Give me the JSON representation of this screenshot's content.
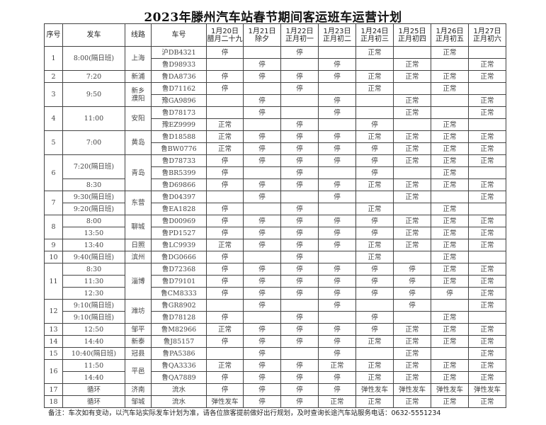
{
  "title": "2023年滕州汽车站春节期间客运班车运营计划",
  "headers": {
    "no": "序号",
    "time": "发车",
    "route": "线路",
    "plate": "车号"
  },
  "days": [
    {
      "date": "1月20日",
      "lunar": "腊月二十九"
    },
    {
      "date": "1月21日",
      "lunar": "除夕"
    },
    {
      "date": "1月22日",
      "lunar": "正月初一"
    },
    {
      "date": "1月23日",
      "lunar": "正月初二"
    },
    {
      "date": "1月24日",
      "lunar": "正月初三"
    },
    {
      "date": "1月25日",
      "lunar": "正月初四"
    },
    {
      "date": "1月26日",
      "lunar": "正月初五"
    },
    {
      "date": "1月27日",
      "lunar": "正月初六"
    }
  ],
  "groups": [
    {
      "no": "1",
      "route": "上海",
      "rows": [
        {
          "time": "8:00(隔日班)",
          "plate": "沪DB4321",
          "status": [
            "停",
            "",
            "停",
            "",
            "正常",
            "",
            "正常",
            ""
          ]
        },
        {
          "time": null,
          "plate": "鲁D98933",
          "status": [
            "",
            "停",
            "",
            "停",
            "",
            "正常",
            "",
            "正常"
          ]
        }
      ]
    },
    {
      "no": "2",
      "route": "新浦",
      "rows": [
        {
          "time": "7:20",
          "plate": "鲁DA8736",
          "status": [
            "停",
            "停",
            "停",
            "停",
            "正常",
            "正常",
            "正常",
            "正常"
          ]
        }
      ]
    },
    {
      "no": "3",
      "route": "新乡濮阳",
      "rows": [
        {
          "time": "9:50",
          "plate": "鲁D71162",
          "status": [
            "停",
            "",
            "停",
            "",
            "正常",
            "",
            "正常",
            ""
          ]
        },
        {
          "time": null,
          "plate": "豫GA9896",
          "status": [
            "",
            "停",
            "",
            "停",
            "",
            "正常",
            "",
            "正常"
          ]
        }
      ]
    },
    {
      "no": "4",
      "route": "安阳",
      "rows": [
        {
          "time": "11:00",
          "plate": "鲁D78173",
          "status": [
            "",
            "停",
            "",
            "停",
            "",
            "正常",
            "",
            "正常"
          ]
        },
        {
          "time": null,
          "plate": "豫EZ9999",
          "status": [
            "正常",
            "",
            "停",
            "",
            "停",
            "",
            "正常",
            ""
          ]
        }
      ]
    },
    {
      "no": "5",
      "route": "黄岛",
      "rows": [
        {
          "time": "7:00",
          "plate": "鲁D18588",
          "status": [
            "正常",
            "停",
            "停",
            "停",
            "正常",
            "正常",
            "正常",
            "正常"
          ]
        },
        {
          "time": null,
          "plate": "鲁BW0776",
          "status": [
            "正常",
            "停",
            "停",
            "停",
            "停",
            "正常",
            "正常",
            "正常"
          ]
        }
      ]
    },
    {
      "no": "6",
      "route": "青岛",
      "rows": [
        {
          "time": "7:20(隔日班)",
          "plate": "鲁D78733",
          "status": [
            "停",
            "停",
            "停",
            "停",
            "停",
            "正常",
            "正常",
            "正常"
          ]
        },
        {
          "time": null,
          "plate": "鲁BR5399",
          "status": [
            "停",
            "",
            "停",
            "",
            "停",
            "",
            "正常",
            ""
          ]
        },
        {
          "time": "8:30",
          "plate": "鲁D69866",
          "status": [
            "停",
            "停",
            "停",
            "停",
            "正常",
            "正常",
            "正常",
            "正常"
          ]
        }
      ]
    },
    {
      "no": "7",
      "route": "东营",
      "rows": [
        {
          "time": "9:30(隔日班)",
          "plate": "鲁D04397",
          "status": [
            "",
            "停",
            "",
            "停",
            "",
            "正常",
            "",
            "正常"
          ]
        },
        {
          "time": "9:20(隔日班)",
          "plate": "鲁EA1828",
          "status": [
            "停",
            "",
            "停",
            "",
            "正常",
            "",
            "正常",
            ""
          ]
        }
      ]
    },
    {
      "no": "8",
      "route": "聊城",
      "rows": [
        {
          "time": "8:00",
          "plate": "鲁D00969",
          "status": [
            "停",
            "停",
            "停",
            "停",
            "停",
            "正常",
            "正常",
            "正常"
          ]
        },
        {
          "time": "13:50",
          "plate": "鲁PD1527",
          "status": [
            "停",
            "停",
            "停",
            "停",
            "停",
            "正常",
            "正常",
            "正常"
          ]
        }
      ]
    },
    {
      "no": "9",
      "route": "日照",
      "rows": [
        {
          "time": "13:40",
          "plate": "鲁LC9939",
          "status": [
            "正常",
            "停",
            "停",
            "停",
            "正常",
            "正常",
            "正常",
            "正常"
          ]
        }
      ]
    },
    {
      "no": "10",
      "route": "滨州",
      "rows": [
        {
          "time": "9:40(隔日班)",
          "plate": "鲁DG0666",
          "status": [
            "停",
            "",
            "停",
            "",
            "正常",
            "",
            "正常",
            ""
          ]
        }
      ]
    },
    {
      "no": "11",
      "route": "淄博",
      "rows": [
        {
          "time": "8:30",
          "plate": "鲁D72368",
          "status": [
            "停",
            "停",
            "停",
            "停",
            "停",
            "停",
            "正常",
            "正常"
          ]
        },
        {
          "time": "11:30",
          "plate": "鲁D79101",
          "status": [
            "停",
            "停",
            "停",
            "停",
            "停",
            "停",
            "正常",
            "正常"
          ]
        },
        {
          "time": "12:30",
          "plate": "鲁CM8333",
          "status": [
            "停",
            "停",
            "停",
            "停",
            "停",
            "停",
            "停",
            "正常"
          ]
        }
      ]
    },
    {
      "no": "12",
      "route": "潍坊",
      "rows": [
        {
          "time": "9:10(隔日班)",
          "plate": "鲁GR8902",
          "status": [
            "",
            "停",
            "",
            "停",
            "",
            "停",
            "",
            "正常"
          ]
        },
        {
          "time": "9:10(隔日班)",
          "plate": "鲁D78128",
          "status": [
            "停",
            "",
            "停",
            "",
            "停",
            "",
            "正常",
            ""
          ]
        }
      ]
    },
    {
      "no": "13",
      "route": "邹平",
      "rows": [
        {
          "time": "12:50",
          "plate": "鲁M82966",
          "status": [
            "正常",
            "停",
            "停",
            "停",
            "停",
            "正常",
            "正常",
            "正常"
          ]
        }
      ]
    },
    {
      "no": "14",
      "route": "新泰",
      "rows": [
        {
          "time": "14:40",
          "plate": "鲁J85157",
          "status": [
            "停",
            "停",
            "停",
            "停",
            "正常",
            "正常",
            "正常",
            "正常"
          ]
        }
      ]
    },
    {
      "no": "15",
      "route": "冠县",
      "rows": [
        {
          "time": "10:40(隔日班)",
          "plate": "鲁PA5386",
          "status": [
            "",
            "停",
            "",
            "停",
            "",
            "正常",
            "",
            "正常"
          ]
        }
      ]
    },
    {
      "no": "16",
      "route": "平邑",
      "rows": [
        {
          "time": "11:50",
          "plate": "鲁QA3336",
          "status": [
            "正常",
            "停",
            "停",
            "正常",
            "正常",
            "正常",
            "正常",
            "正常"
          ]
        },
        {
          "time": "14:40",
          "plate": "鲁QA7889",
          "status": [
            "停",
            "停",
            "停",
            "停",
            "正常",
            "正常",
            "正常",
            "正常"
          ]
        }
      ]
    },
    {
      "no": "17",
      "route": "济南",
      "rows": [
        {
          "time": "循环",
          "plate": "流水",
          "status": [
            "停",
            "停",
            "停",
            "停",
            "弹性发车",
            "弹性发车",
            "弹性发车",
            "弹性发车"
          ]
        }
      ]
    },
    {
      "no": "18",
      "route": "邹城",
      "rows": [
        {
          "time": "循环",
          "plate": "流水",
          "status": [
            "弹性发车",
            "停",
            "停",
            "正常",
            "正常",
            "正常",
            "正常",
            "正常"
          ]
        }
      ]
    }
  ],
  "note": "备注：车次如有变动，以汽车站实际发车计划为准，请各位旅客提前做好出行规划，及时查询长途汽车站服务电话：0632-5551234"
}
